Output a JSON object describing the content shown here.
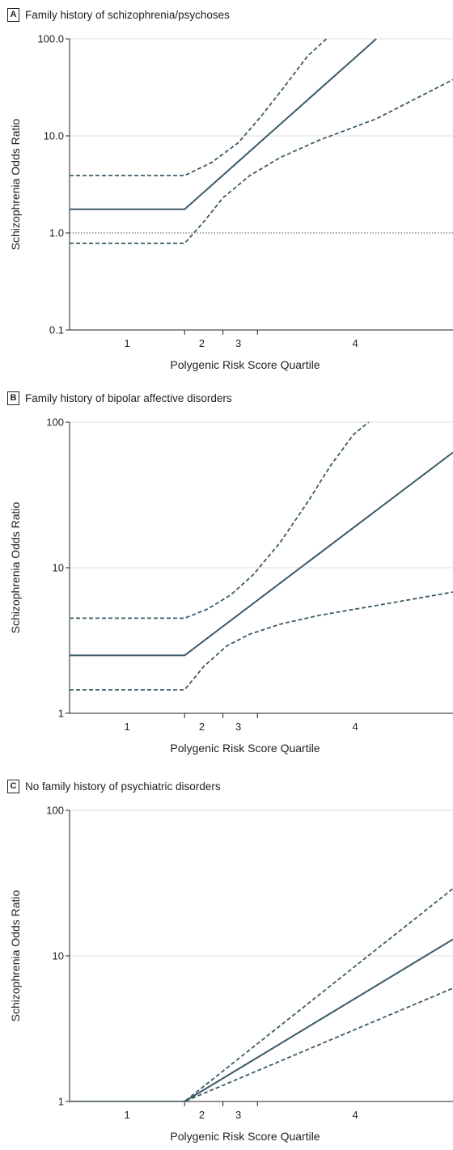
{
  "chart_data": [
    {
      "type": "line",
      "panel_letter": "A",
      "title": "Family history of schizophrenia/psychoses",
      "xlabel": "Polygenic Risk Score Quartile",
      "ylabel": "Schizophrenia Odds Ratio",
      "y_scale": "log",
      "ylim": [
        0.1,
        100
      ],
      "y_ticks": [
        {
          "value": 0.1,
          "label": "0.1"
        },
        {
          "value": 1,
          "label": "1.0"
        },
        {
          "value": 10,
          "label": "10.0"
        },
        {
          "value": 100,
          "label": "100.0"
        }
      ],
      "xlim": [
        0,
        1
      ],
      "x_ticks": [
        0.3,
        0.4,
        0.49
      ],
      "x_tick_labels": [
        {
          "x": 0.15,
          "label": "1"
        },
        {
          "x": 0.345,
          "label": "2"
        },
        {
          "x": 0.44,
          "label": "3"
        },
        {
          "x": 0.745,
          "label": "4"
        }
      ],
      "reference_line": 1,
      "grid": "horizontal",
      "line_color": "#3c5a6a",
      "series": [
        {
          "style": "solid",
          "x": [
            0,
            0.3,
            0.8
          ],
          "y": [
            1.75,
            1.75,
            100
          ]
        },
        {
          "style": "dashed",
          "x": [
            0,
            0.3,
            0.37,
            0.44,
            0.5,
            0.56,
            0.62,
            0.67
          ],
          "y": [
            3.9,
            3.9,
            5.3,
            8.5,
            16,
            32,
            66,
            100
          ]
        },
        {
          "style": "dashed",
          "x": [
            0,
            0.3,
            0.35,
            0.4,
            0.47,
            0.55,
            0.65,
            0.8,
            1.0
          ],
          "y": [
            0.78,
            0.78,
            1.3,
            2.3,
            3.9,
            6,
            9,
            15,
            38
          ]
        }
      ]
    },
    {
      "type": "line",
      "panel_letter": "B",
      "title": "Family history of bipolar affective disorders",
      "xlabel": "Polygenic Risk Score Quartile",
      "ylabel": "Schizophrenia Odds Ratio",
      "y_scale": "log",
      "ylim": [
        1,
        100
      ],
      "y_ticks": [
        {
          "value": 1,
          "label": "1"
        },
        {
          "value": 10,
          "label": "10"
        },
        {
          "value": 100,
          "label": "100"
        }
      ],
      "xlim": [
        0,
        1
      ],
      "x_ticks": [
        0.3,
        0.4,
        0.49
      ],
      "x_tick_labels": [
        {
          "x": 0.15,
          "label": "1"
        },
        {
          "x": 0.345,
          "label": "2"
        },
        {
          "x": 0.44,
          "label": "3"
        },
        {
          "x": 0.745,
          "label": "4"
        }
      ],
      "reference_line": 1,
      "grid": "horizontal",
      "line_color": "#3c5a6a",
      "series": [
        {
          "style": "solid",
          "x": [
            0,
            0.3,
            1.0
          ],
          "y": [
            2.5,
            2.5,
            62
          ]
        },
        {
          "style": "dashed",
          "x": [
            0,
            0.3,
            0.36,
            0.42,
            0.48,
            0.55,
            0.62,
            0.68,
            0.74,
            0.78
          ],
          "y": [
            4.5,
            4.5,
            5.2,
            6.5,
            9,
            15,
            28,
            50,
            82,
            100
          ]
        },
        {
          "style": "dashed",
          "x": [
            0,
            0.3,
            0.35,
            0.41,
            0.47,
            0.55,
            0.65,
            0.8,
            1.0
          ],
          "y": [
            1.45,
            1.45,
            2.1,
            2.9,
            3.5,
            4.1,
            4.7,
            5.5,
            6.8
          ]
        }
      ]
    },
    {
      "type": "line",
      "panel_letter": "C",
      "title": "No family history of psychiatric disorders",
      "xlabel": "Polygenic Risk Score Quartile",
      "ylabel": "Schizophrenia Odds Ratio",
      "y_scale": "log",
      "ylim": [
        1,
        100
      ],
      "y_ticks": [
        {
          "value": 1,
          "label": "1"
        },
        {
          "value": 10,
          "label": "10"
        },
        {
          "value": 100,
          "label": "100"
        }
      ],
      "xlim": [
        0,
        1
      ],
      "x_ticks": [
        0.3,
        0.4,
        0.49
      ],
      "x_tick_labels": [
        {
          "x": 0.15,
          "label": "1"
        },
        {
          "x": 0.345,
          "label": "2"
        },
        {
          "x": 0.44,
          "label": "3"
        },
        {
          "x": 0.745,
          "label": "4"
        }
      ],
      "reference_line": 1,
      "grid": "horizontal",
      "line_color": "#3c5a6a",
      "series": [
        {
          "style": "solid",
          "x": [
            0,
            0.3,
            1.0
          ],
          "y": [
            1,
            1,
            13
          ]
        },
        {
          "style": "dashed",
          "x": [
            0,
            0.3,
            1.0
          ],
          "y": [
            1,
            1,
            29
          ]
        },
        {
          "style": "dashed",
          "x": [
            0,
            0.3,
            1.0
          ],
          "y": [
            1,
            1,
            6
          ]
        }
      ]
    }
  ]
}
